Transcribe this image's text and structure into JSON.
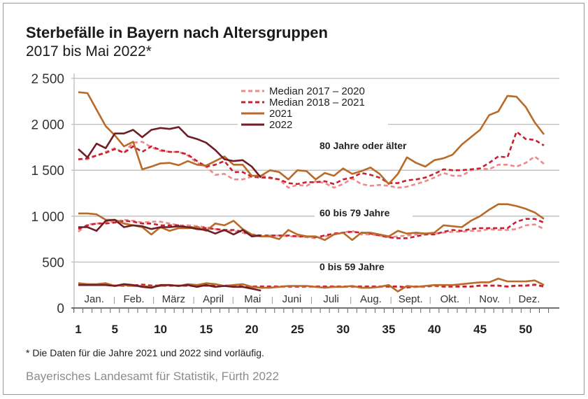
{
  "title": "Sterbefälle in Bayern nach Altersgruppen",
  "subtitle": "2017 bis Mai 2022*",
  "footnote": "* Die Daten für die Jahre 2021 und 2022 sind vorläufig.",
  "source": "Bayerisches Landesamt für Statistik, Fürth 2022",
  "chart_data": {
    "type": "line",
    "xlabel": "",
    "ylabel": "",
    "ylim": [
      0,
      2500
    ],
    "xlim": [
      1,
      52
    ],
    "grid": "horizontal",
    "legend_position": "top-center",
    "y_ticks": [
      {
        "v": 0,
        "label": "0"
      },
      {
        "v": 500,
        "label": "500"
      },
      {
        "v": 1000,
        "label": "1 000"
      },
      {
        "v": 1500,
        "label": "1 500"
      },
      {
        "v": 2000,
        "label": "2 000"
      },
      {
        "v": 2500,
        "label": "2 500"
      }
    ],
    "x_ticks": [
      1,
      5,
      10,
      15,
      20,
      25,
      30,
      35,
      40,
      45,
      50
    ],
    "months": [
      "Jan.",
      "Feb.",
      "März",
      "April",
      "Mai",
      "Juni",
      "Juli",
      "Aug.",
      "Sept.",
      "Okt.",
      "Nov.",
      "Dez."
    ],
    "legend": [
      {
        "key": "m1720",
        "name": "Median 2017 – 2020",
        "color": "#f08888",
        "dashed": true
      },
      {
        "key": "m1821",
        "name": "Median 2018 – 2021",
        "color": "#c8202e",
        "dashed": true
      },
      {
        "key": "y2021",
        "name": "2021",
        "color": "#b86a28",
        "dashed": false
      },
      {
        "key": "y2022",
        "name": "2022",
        "color": "#6e1e24",
        "dashed": false
      }
    ],
    "groups": [
      {
        "label": "80 Jahre oder älter",
        "m1720": [
          1620,
          1620,
          1660,
          1700,
          1740,
          1690,
          1800,
          1810,
          1750,
          1710,
          1700,
          1700,
          1660,
          1580,
          1540,
          1450,
          1460,
          1400,
          1400,
          1430,
          1450,
          1410,
          1400,
          1310,
          1340,
          1330,
          1380,
          1360,
          1310,
          1350,
          1410,
          1350,
          1330,
          1340,
          1330,
          1310,
          1320,
          1350,
          1380,
          1420,
          1470,
          1440,
          1440,
          1500,
          1520,
          1510,
          1560,
          1560,
          1540,
          1580,
          1650,
          1570
        ],
        "m1821": [
          1620,
          1630,
          1660,
          1690,
          1730,
          1690,
          1760,
          1700,
          1760,
          1720,
          1700,
          1700,
          1670,
          1600,
          1540,
          1560,
          1600,
          1480,
          1480,
          1430,
          1420,
          1420,
          1400,
          1360,
          1350,
          1370,
          1370,
          1380,
          1350,
          1400,
          1420,
          1470,
          1450,
          1420,
          1360,
          1360,
          1390,
          1400,
          1420,
          1460,
          1510,
          1500,
          1500,
          1510,
          1520,
          1580,
          1650,
          1640,
          1920,
          1840,
          1830,
          1770
        ],
        "y2021": [
          2350,
          2340,
          2160,
          1980,
          1880,
          1760,
          1810,
          1510,
          1540,
          1575,
          1580,
          1555,
          1600,
          1560,
          1550,
          1600,
          1650,
          1560,
          1560,
          1440,
          1440,
          1500,
          1480,
          1400,
          1500,
          1490,
          1400,
          1470,
          1440,
          1520,
          1460,
          1490,
          1530,
          1460,
          1350,
          1460,
          1640,
          1580,
          1540,
          1610,
          1630,
          1670,
          1780,
          1860,
          1940,
          2100,
          2140,
          2310,
          2300,
          2190,
          2020,
          1890
        ],
        "y2022": [
          1730,
          1640,
          1790,
          1740,
          1900,
          1900,
          1940,
          1860,
          1940,
          1960,
          1950,
          1970,
          1870,
          1840,
          1800,
          1720,
          1620,
          1600,
          1610,
          1540,
          1420
        ]
      },
      {
        "label": "60 bis 79 Jahre",
        "m1720": [
          830,
          910,
          920,
          930,
          940,
          960,
          950,
          930,
          940,
          940,
          920,
          900,
          900,
          890,
          880,
          860,
          840,
          840,
          820,
          790,
          780,
          790,
          790,
          780,
          780,
          770,
          760,
          780,
          800,
          820,
          840,
          800,
          800,
          790,
          770,
          780,
          790,
          800,
          810,
          810,
          820,
          830,
          830,
          840,
          840,
          860,
          850,
          850,
          860,
          900,
          910,
          860
        ],
        "m1821": [
          860,
          900,
          920,
          920,
          930,
          950,
          940,
          920,
          920,
          900,
          900,
          900,
          880,
          880,
          870,
          860,
          850,
          850,
          830,
          800,
          790,
          790,
          790,
          790,
          780,
          780,
          770,
          790,
          810,
          820,
          830,
          820,
          810,
          790,
          770,
          760,
          760,
          780,
          800,
          800,
          830,
          850,
          840,
          860,
          870,
          870,
          870,
          870,
          940,
          970,
          970,
          930
        ],
        "y2021": [
          1030,
          1030,
          1020,
          960,
          960,
          920,
          900,
          880,
          800,
          880,
          840,
          870,
          870,
          880,
          840,
          920,
          900,
          950,
          860,
          800,
          780,
          780,
          750,
          850,
          800,
          780,
          780,
          740,
          800,
          820,
          740,
          820,
          820,
          800,
          780,
          840,
          810,
          820,
          810,
          820,
          900,
          890,
          880,
          950,
          1000,
          1070,
          1130,
          1130,
          1110,
          1080,
          1040,
          970
        ],
        "y2022": [
          880,
          880,
          840,
          950,
          960,
          880,
          900,
          890,
          860,
          880,
          880,
          890,
          880,
          860,
          850,
          810,
          850,
          800,
          850,
          780,
          790
        ]
      },
      {
        "label": "0 bis 59 Jahre",
        "m1720": [
          250,
          250,
          250,
          250,
          240,
          240,
          240,
          250,
          240,
          240,
          240,
          240,
          240,
          240,
          240,
          240,
          240,
          240,
          230,
          230,
          230,
          230,
          230,
          230,
          230,
          230,
          230,
          230,
          230,
          230,
          230,
          230,
          230,
          230,
          230,
          230,
          220,
          230,
          230,
          240,
          230,
          230,
          230,
          230,
          240,
          240,
          240,
          230,
          240,
          240,
          250,
          230
        ],
        "m1821": [
          255,
          255,
          255,
          255,
          245,
          245,
          245,
          255,
          245,
          245,
          245,
          245,
          245,
          245,
          245,
          245,
          245,
          245,
          235,
          235,
          235,
          235,
          235,
          235,
          235,
          235,
          235,
          235,
          235,
          235,
          235,
          235,
          235,
          235,
          235,
          235,
          225,
          235,
          235,
          245,
          235,
          235,
          235,
          235,
          245,
          245,
          245,
          235,
          245,
          245,
          255,
          235
        ],
        "y2021": [
          270,
          260,
          260,
          270,
          240,
          250,
          240,
          240,
          230,
          240,
          250,
          240,
          260,
          250,
          270,
          260,
          240,
          250,
          260,
          230,
          220,
          220,
          230,
          240,
          240,
          240,
          230,
          220,
          230,
          230,
          240,
          220,
          220,
          230,
          250,
          180,
          240,
          230,
          240,
          250,
          250,
          250,
          260,
          270,
          280,
          280,
          320,
          290,
          290,
          290,
          300,
          250
        ],
        "y2022": [
          250,
          250,
          250,
          250,
          240,
          260,
          250,
          230,
          220,
          250,
          250,
          240,
          250,
          230,
          250,
          230,
          240,
          230,
          230,
          210,
          190
        ]
      }
    ]
  }
}
